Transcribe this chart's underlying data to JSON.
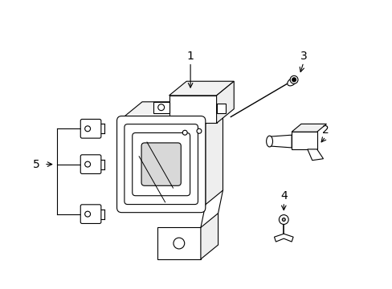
{
  "background_color": "#ffffff",
  "line_color": "#000000",
  "fig_width": 4.89,
  "fig_height": 3.6,
  "dpi": 100
}
